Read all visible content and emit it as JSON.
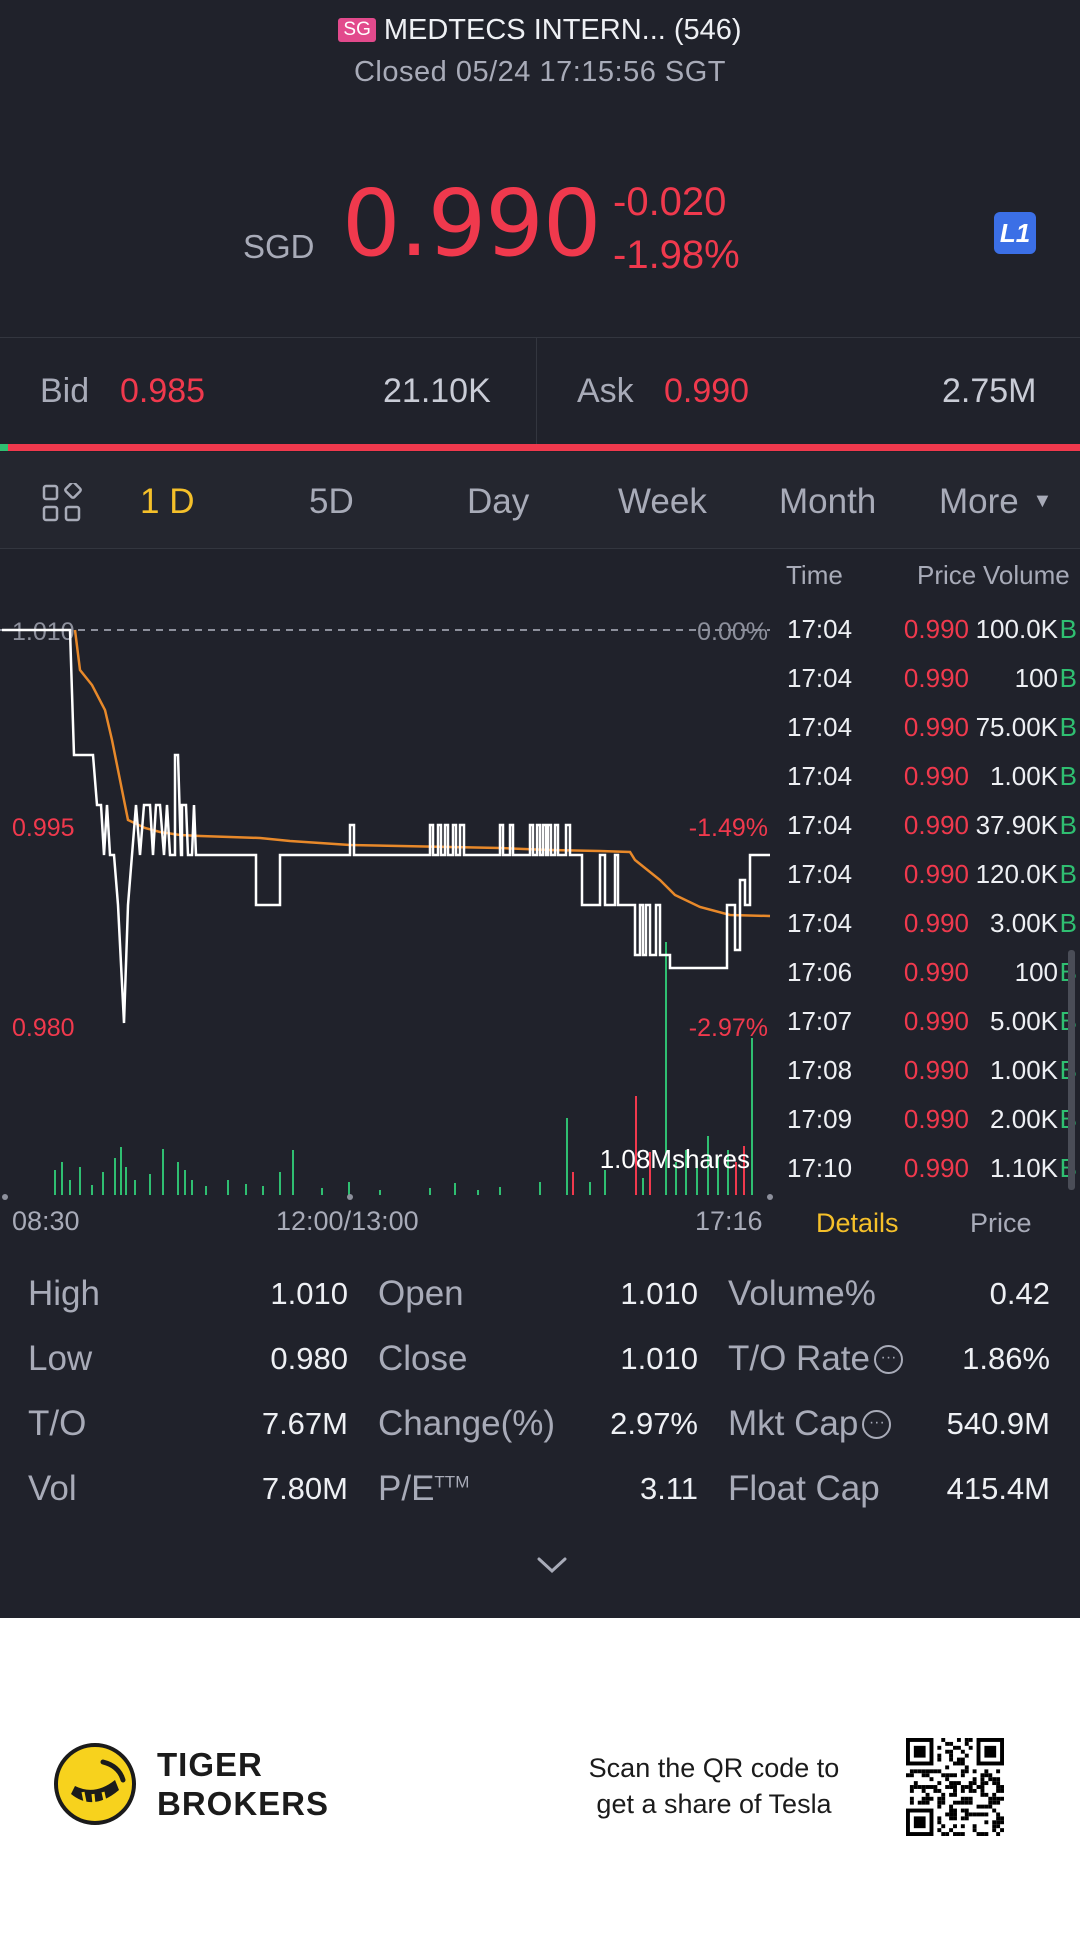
{
  "header": {
    "market_badge": "SG",
    "title": "MEDTECS INTERN... (546)",
    "status": "Closed 05/24 17:15:56 SGT"
  },
  "quote": {
    "currency": "SGD",
    "price": "0.990",
    "change": "-0.020",
    "change_pct": "-1.98%",
    "level_badge": "L1"
  },
  "bid_ask": {
    "bid_label": "Bid",
    "bid_price": "0.985",
    "bid_volume": "21.10K",
    "ask_label": "Ask",
    "ask_price": "0.990",
    "ask_volume": "2.75M",
    "bid_share": 0.01
  },
  "period_tabs": [
    "1 D",
    "5D",
    "Day",
    "Week",
    "Month",
    "More"
  ],
  "active_tab": "1 D",
  "chart": {
    "y_labels": [
      "1.010",
      "0.995",
      "0.980"
    ],
    "pct_labels": [
      "0.00%",
      "-1.49%",
      "-2.97%"
    ],
    "volume_label": "1.08Mshares",
    "time_labels": [
      "08:30",
      "12:00/13:00",
      "17:16"
    ]
  },
  "trade_table": {
    "headers": [
      "Time",
      "Price",
      "Volume"
    ],
    "rows": [
      {
        "time": "17:04",
        "price": "0.990",
        "volume": "100.0K",
        "side": "B"
      },
      {
        "time": "17:04",
        "price": "0.990",
        "volume": "100",
        "side": "B"
      },
      {
        "time": "17:04",
        "price": "0.990",
        "volume": "75.00K",
        "side": "B"
      },
      {
        "time": "17:04",
        "price": "0.990",
        "volume": "1.00K",
        "side": "B"
      },
      {
        "time": "17:04",
        "price": "0.990",
        "volume": "37.90K",
        "side": "B"
      },
      {
        "time": "17:04",
        "price": "0.990",
        "volume": "120.0K",
        "side": "B"
      },
      {
        "time": "17:04",
        "price": "0.990",
        "volume": "3.00K",
        "side": "B"
      },
      {
        "time": "17:06",
        "price": "0.990",
        "volume": "100",
        "side": "B"
      },
      {
        "time": "17:07",
        "price": "0.990",
        "volume": "5.00K",
        "side": "B"
      },
      {
        "time": "17:08",
        "price": "0.990",
        "volume": "1.00K",
        "side": "B"
      },
      {
        "time": "17:09",
        "price": "0.990",
        "volume": "2.00K",
        "side": "B"
      },
      {
        "time": "17:10",
        "price": "0.990",
        "volume": "1.10K",
        "side": "B"
      }
    ],
    "sub_tabs": [
      "Details",
      "Price"
    ]
  },
  "stats": [
    {
      "label": "High",
      "value": "1.010"
    },
    {
      "label": "Open",
      "value": "1.010"
    },
    {
      "label": "Volume%",
      "value": "0.42"
    },
    {
      "label": "Low",
      "value": "0.980"
    },
    {
      "label": "Close",
      "value": "1.010"
    },
    {
      "label": "T/O Rate",
      "value": "1.86%"
    },
    {
      "label": "T/O",
      "value": "7.67M"
    },
    {
      "label": "Change(%)",
      "value": "2.97%"
    },
    {
      "label": "Mkt Cap",
      "value": "540.9M"
    },
    {
      "label": "Vol",
      "value": "7.80M"
    },
    {
      "label": "P/E",
      "sup": "TTM",
      "value": "3.11"
    },
    {
      "label": "Float Cap",
      "value": "415.4M"
    }
  ],
  "footer": {
    "brand_line1": "TIGER",
    "brand_line2": "BROKERS",
    "promo_line1": "Scan the QR code to",
    "promo_line2": "get a share of Tesla"
  },
  "colors": {
    "background": "#20222b",
    "down": "#f0394d",
    "up": "#2fbf71",
    "accent": "#f5c02a",
    "avg_line": "#e8892a"
  }
}
